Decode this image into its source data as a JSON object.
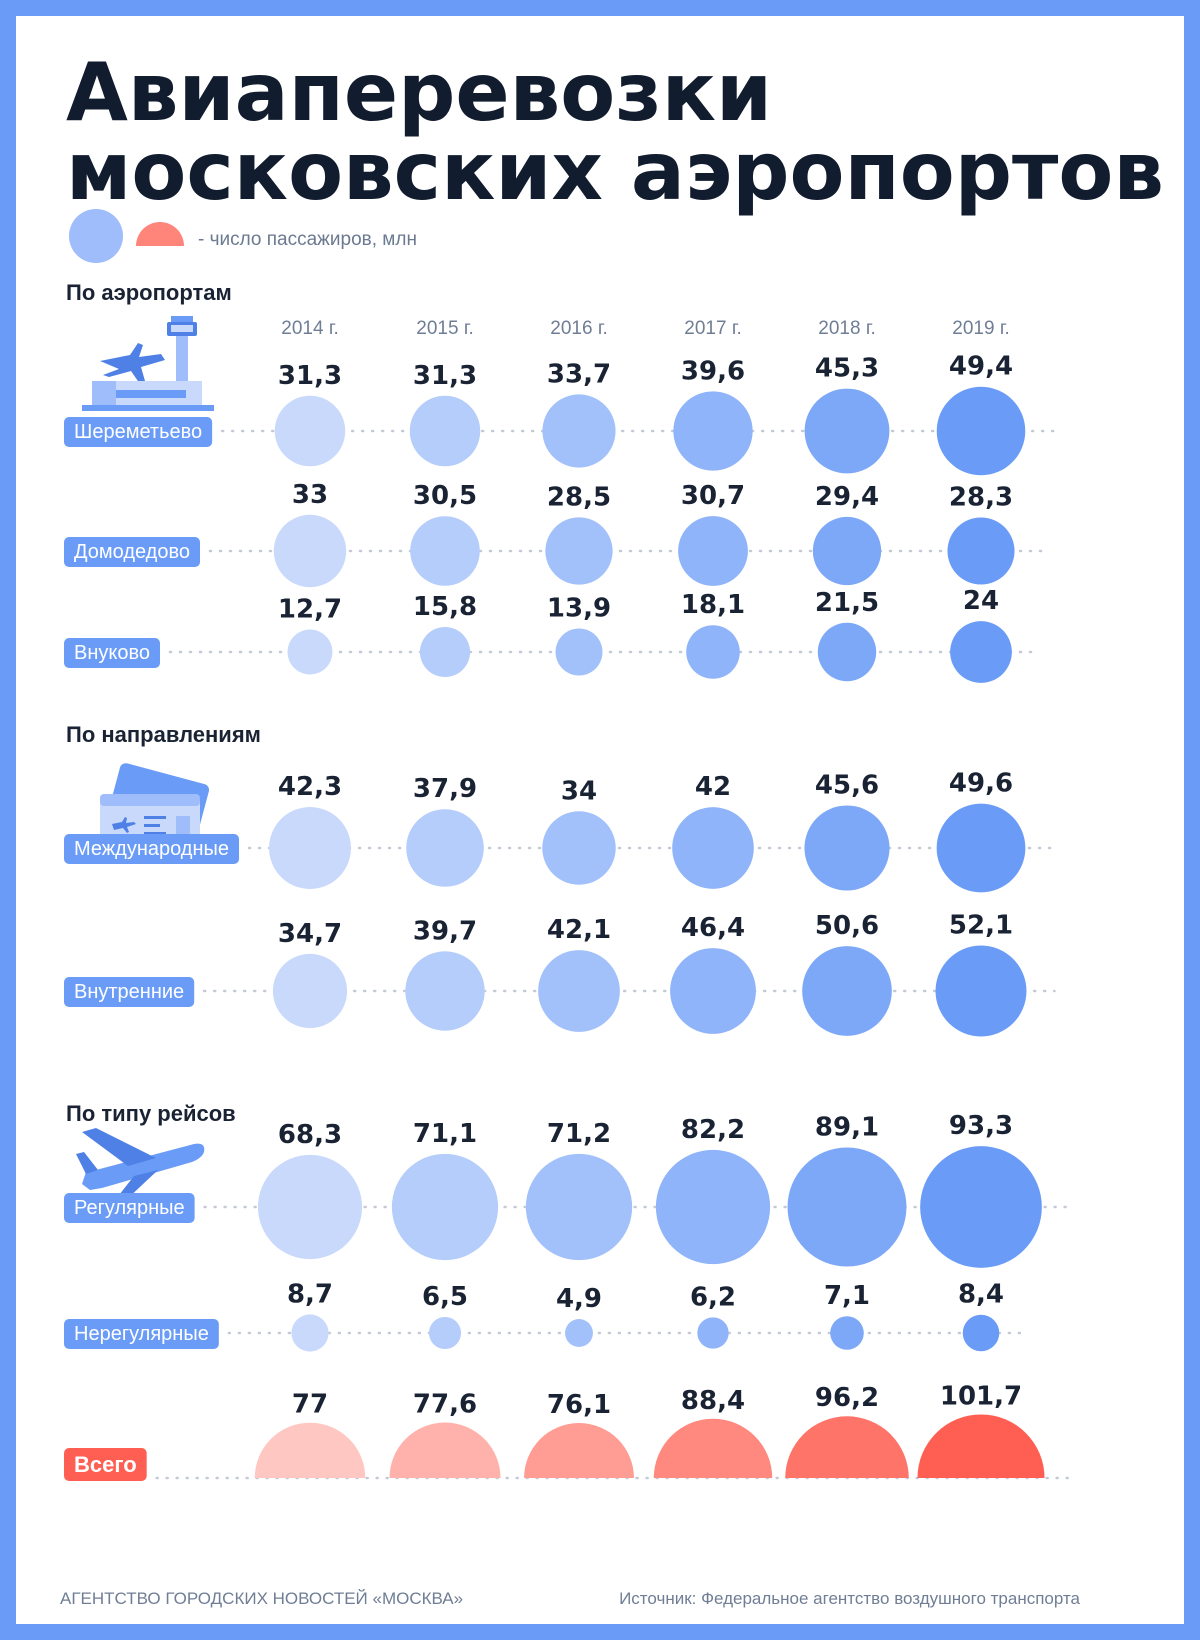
{
  "title": [
    "Авиаперевозки",
    "московских аэропортов"
  ],
  "legend": {
    "text": "- число пассажиров, млн"
  },
  "years": [
    "2014 г.",
    "2015 г.",
    "2016 г.",
    "2017 г.",
    "2018 г.",
    "2019 г."
  ],
  "sections": [
    {
      "title": "По аэропортам",
      "icon": "airport-tower-icon"
    },
    {
      "title": "По направлениям",
      "icon": "boarding-pass-icon"
    },
    {
      "title": "По типу рейсов",
      "icon": "airplane-icon"
    }
  ],
  "colors": {
    "border": "#6a9cf7",
    "circle_light": "#c8d9fc",
    "circle_dark": "#6a9cf7",
    "total_light": "#ffc7c1",
    "total_dark": "#ff5f53",
    "label_bg": "#6a9cf7",
    "total_label_bg": "#ff5f53"
  },
  "footer": {
    "agency": "АГЕНТСТВО ГОРОДСКИХ НОВОСТЕЙ «МОСКВА»",
    "source": "Источник: Федеральное агентство воздушного транспорта"
  },
  "chart_data": {
    "type": "bubble",
    "unit": "млн",
    "categories": [
      "2014 г.",
      "2015 г.",
      "2016 г.",
      "2017 г.",
      "2018 г.",
      "2019 г."
    ],
    "series": [
      {
        "name": "Шереметьево",
        "values": [
          31.3,
          31.3,
          33.7,
          39.6,
          45.3,
          49.4
        ],
        "labels": [
          "31,3",
          "31,3",
          "33,7",
          "39,6",
          "45,3",
          "49,4"
        ]
      },
      {
        "name": "Домодедово",
        "values": [
          33,
          30.5,
          28.5,
          30.7,
          29.4,
          28.3
        ],
        "labels": [
          "33",
          "30,5",
          "28,5",
          "30,7",
          "29,4",
          "28,3"
        ]
      },
      {
        "name": "Внуково",
        "values": [
          12.7,
          15.8,
          13.9,
          18.1,
          21.5,
          24
        ],
        "labels": [
          "12,7",
          "15,8",
          "13,9",
          "18,1",
          "21,5",
          "24"
        ]
      },
      {
        "name": "Международные",
        "values": [
          42.3,
          37.9,
          34,
          42,
          45.6,
          49.6
        ],
        "labels": [
          "42,3",
          "37,9",
          "34",
          "42",
          "45,6",
          "49,6"
        ]
      },
      {
        "name": "Внутренние",
        "values": [
          34.7,
          39.7,
          42.1,
          46.4,
          50.6,
          52.1
        ],
        "labels": [
          "34,7",
          "39,7",
          "42,1",
          "46,4",
          "50,6",
          "52,1"
        ]
      },
      {
        "name": "Регулярные",
        "values": [
          68.3,
          71.1,
          71.2,
          82.2,
          89.1,
          93.3
        ],
        "labels": [
          "68,3",
          "71,1",
          "71,2",
          "82,2",
          "89,1",
          "93,3"
        ]
      },
      {
        "name": "Нерегулярные",
        "values": [
          8.7,
          6.5,
          4.9,
          6.2,
          7.1,
          8.4
        ],
        "labels": [
          "8,7",
          "6,5",
          "4,9",
          "6,2",
          "7,1",
          "8,4"
        ]
      },
      {
        "name": "Всего",
        "values": [
          77,
          77.6,
          76.1,
          88.4,
          96.2,
          101.7
        ],
        "labels": [
          "77",
          "77,6",
          "76,1",
          "88,4",
          "96,2",
          "101,7"
        ],
        "shape": "half-circle"
      }
    ]
  }
}
